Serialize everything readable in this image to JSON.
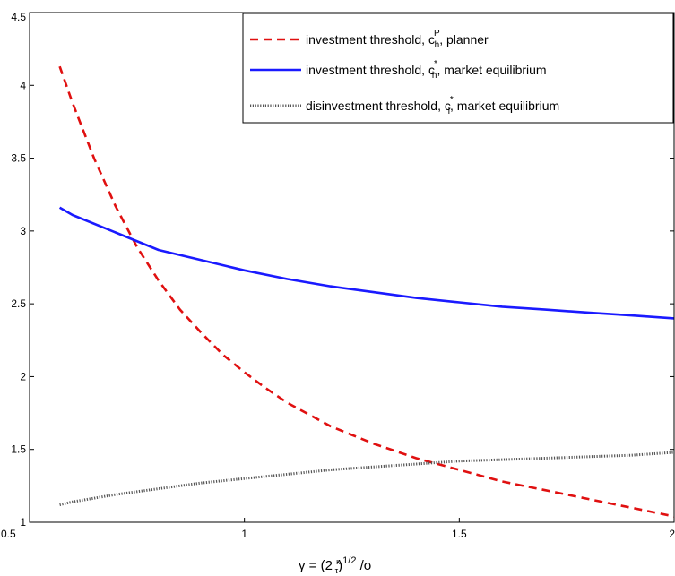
{
  "chart_data": {
    "type": "line",
    "title": "",
    "xlabel": "",
    "ylabel": "",
    "xlim": [
      0.5,
      2
    ],
    "ylim": [
      1,
      4.5
    ],
    "x_ticks": [
      "0.5",
      "1",
      "1.5",
      "2"
    ],
    "y_ticks": [
      "1",
      "1.5",
      "2",
      "2.5",
      "3",
      "3.5",
      "4",
      "4.5"
    ],
    "x_tick_values": [
      0.5,
      1,
      1.5,
      2
    ],
    "y_tick_values": [
      1,
      1.5,
      2,
      2.5,
      3,
      3.5,
      4,
      4.5
    ],
    "grid": false,
    "legend_position": "top-right",
    "x_axis_label_parts": {
      "lead": "γ = (2 ",
      "frac_num": "κ",
      "frac_den": "τ",
      "close": ")",
      "sup": "1/2",
      "tail": " /σ"
    },
    "series": [
      {
        "name": "investment threshold, c_h^P, planner",
        "legend_parts": {
          "pre": "investment threshold, c",
          "sub": "h",
          "sup": "P",
          "post": ", planner"
        },
        "color": "#e01010",
        "style": "dashed",
        "x": [
          0.57,
          0.6,
          0.65,
          0.7,
          0.75,
          0.8,
          0.85,
          0.9,
          0.95,
          1.0,
          1.05,
          1.1,
          1.15,
          1.2,
          1.25,
          1.3,
          1.35,
          1.4,
          1.45,
          1.5,
          1.55,
          1.6,
          1.65,
          1.7,
          1.75,
          1.8,
          1.85,
          1.9,
          1.95,
          2.0
        ],
        "y": [
          4.13,
          3.88,
          3.5,
          3.17,
          2.89,
          2.66,
          2.46,
          2.3,
          2.15,
          2.03,
          1.92,
          1.82,
          1.74,
          1.66,
          1.6,
          1.54,
          1.49,
          1.44,
          1.4,
          1.36,
          1.32,
          1.28,
          1.25,
          1.22,
          1.19,
          1.16,
          1.13,
          1.1,
          1.07,
          1.04
        ]
      },
      {
        "name": "investment threshold, c_h^*, market equilibrium",
        "legend_parts": {
          "pre": "investment threshold, c",
          "sub": "h",
          "sup": "*",
          "post": ", market equilibrium"
        },
        "color": "#1a1aff",
        "style": "solid",
        "x": [
          0.57,
          0.6,
          0.7,
          0.8,
          0.9,
          1.0,
          1.1,
          1.2,
          1.3,
          1.4,
          1.5,
          1.6,
          1.7,
          1.8,
          1.9,
          2.0
        ],
        "y": [
          3.16,
          3.11,
          2.99,
          2.87,
          2.8,
          2.73,
          2.67,
          2.62,
          2.58,
          2.54,
          2.51,
          2.48,
          2.46,
          2.44,
          2.42,
          2.4
        ]
      },
      {
        "name": "disinvestment threshold, c_l^*, market equilibrium",
        "legend_parts": {
          "pre": "disinvestment threshold, c",
          "sub": "l",
          "sup": "*",
          "post": ", market equilibrium"
        },
        "color": "#555555",
        "style": "dotted",
        "x": [
          0.57,
          0.6,
          0.7,
          0.8,
          0.9,
          1.0,
          1.1,
          1.2,
          1.3,
          1.4,
          1.5,
          1.6,
          1.7,
          1.8,
          1.9,
          2.0
        ],
        "y": [
          1.12,
          1.14,
          1.19,
          1.23,
          1.27,
          1.3,
          1.33,
          1.36,
          1.38,
          1.4,
          1.42,
          1.43,
          1.44,
          1.45,
          1.46,
          1.48
        ]
      }
    ]
  }
}
